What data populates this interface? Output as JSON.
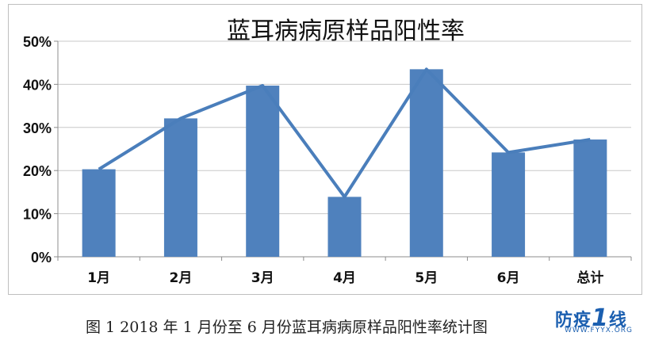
{
  "chart_data": {
    "type": "bar",
    "title": "蓝耳病病原样品阳性率",
    "categories": [
      "1月",
      "2月",
      "3月",
      "4月",
      "5月",
      "6月",
      "总计"
    ],
    "values": [
      20.3,
      32.1,
      39.7,
      13.9,
      43.5,
      24.2,
      27.2
    ],
    "line_values": [
      20.3,
      32.1,
      39.7,
      13.9,
      43.5,
      24.2,
      27.2
    ],
    "ylim": [
      0,
      50
    ],
    "y_ticks": [
      "0%",
      "10%",
      "20%",
      "30%",
      "40%",
      "50%"
    ],
    "grid": true,
    "bar_color": "#4f81bd",
    "line_color": "#4a7ebb"
  },
  "caption": "图 1    2018 年 1 月份至 6 月份蓝耳病病原样品阳性率统计图",
  "watermark": {
    "text": "防疫",
    "number": "1",
    "suffix": "线",
    "url": "WWW.FYYX.ORG"
  }
}
